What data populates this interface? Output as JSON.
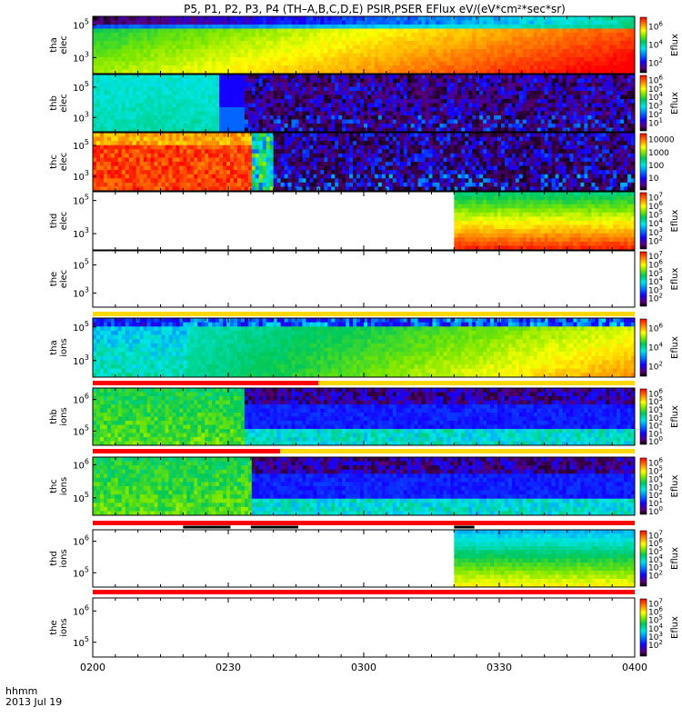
{
  "chart_data": {
    "type": "heatmap",
    "title": "P5, P1, P2, P3, P4 (TH–A,B,C,D,E) PSIR,PSER EFlux eV/(eV*cm²*sec*sr)",
    "x_axis": {
      "ticks": [
        "0200",
        "0230",
        "0300",
        "0330",
        "0400"
      ],
      "range_minutes": [
        0,
        120
      ]
    },
    "footer": {
      "label": "hhmm",
      "date": "2013 Jul 19"
    },
    "panels": [
      {
        "id": "tha_elec",
        "probe": "tha",
        "species": "elec",
        "y_ticks": [
          {
            "base": "10",
            "exp": "5",
            "pos": 0.15
          },
          {
            "base": "10",
            "exp": "3",
            "pos": 0.72
          }
        ],
        "colorbar_label": "Eflux",
        "colorbar_ticks": [
          {
            "base": "10",
            "exp": "6",
            "pos": 0.18
          },
          {
            "base": "10",
            "exp": "4",
            "pos": 0.5
          },
          {
            "base": "10",
            "exp": "2",
            "pos": 0.82
          }
        ],
        "data_span": [
          0,
          120
        ],
        "pattern": "smooth_gradient"
      },
      {
        "id": "thb_elec",
        "probe": "thb",
        "species": "elec",
        "y_ticks": [
          {
            "base": "10",
            "exp": "5",
            "pos": 0.22
          },
          {
            "base": "10",
            "exp": "3",
            "pos": 0.75
          }
        ],
        "colorbar_label": "Eflux",
        "colorbar_ticks": [
          {
            "base": "10",
            "exp": "6",
            "pos": 0.1
          },
          {
            "base": "10",
            "exp": "5",
            "pos": 0.25
          },
          {
            "base": "10",
            "exp": "4",
            "pos": 0.4
          },
          {
            "base": "10",
            "exp": "3",
            "pos": 0.55
          },
          {
            "base": "10",
            "exp": "2",
            "pos": 0.7
          },
          {
            "base": "10",
            "exp": "1",
            "pos": 0.85
          }
        ],
        "data_span": [
          0,
          120
        ],
        "pattern": "cyan_then_noise",
        "transition_minute": 34
      },
      {
        "id": "thc_elec",
        "probe": "thc",
        "species": "elec",
        "y_ticks": [
          {
            "base": "10",
            "exp": "5",
            "pos": 0.22
          },
          {
            "base": "10",
            "exp": "3",
            "pos": 0.75
          }
        ],
        "colorbar_label": "",
        "colorbar_ticks": [
          {
            "base": "10000",
            "exp": "",
            "pos": 0.12
          },
          {
            "base": "1000",
            "exp": "",
            "pos": 0.34
          },
          {
            "base": "100",
            "exp": "",
            "pos": 0.56
          },
          {
            "base": "10",
            "exp": "",
            "pos": 0.78
          }
        ],
        "data_span": [
          0,
          120
        ],
        "pattern": "red_then_noise",
        "transition_minute": 35
      },
      {
        "id": "thd_elec",
        "probe": "thd",
        "species": "elec",
        "y_ticks": [
          {
            "base": "10",
            "exp": "5",
            "pos": 0.15
          },
          {
            "base": "10",
            "exp": "3",
            "pos": 0.72
          }
        ],
        "colorbar_label": "Eflux",
        "colorbar_ticks": [
          {
            "base": "10",
            "exp": "7",
            "pos": 0.1
          },
          {
            "base": "10",
            "exp": "6",
            "pos": 0.25
          },
          {
            "base": "10",
            "exp": "5",
            "pos": 0.4
          },
          {
            "base": "10",
            "exp": "4",
            "pos": 0.55
          },
          {
            "base": "10",
            "exp": "3",
            "pos": 0.7
          },
          {
            "base": "10",
            "exp": "2",
            "pos": 0.85
          }
        ],
        "data_span": [
          80,
          120
        ],
        "pattern": "late_gradient"
      },
      {
        "id": "the_elec",
        "probe": "the",
        "species": "elec",
        "y_ticks": [
          {
            "base": "10",
            "exp": "5",
            "pos": 0.25
          },
          {
            "base": "10",
            "exp": "3",
            "pos": 0.75
          }
        ],
        "colorbar_label": "Eflux",
        "colorbar_ticks": [
          {
            "base": "10",
            "exp": "7",
            "pos": 0.1
          },
          {
            "base": "10",
            "exp": "6",
            "pos": 0.25
          },
          {
            "base": "10",
            "exp": "5",
            "pos": 0.4
          },
          {
            "base": "10",
            "exp": "4",
            "pos": 0.55
          },
          {
            "base": "10",
            "exp": "3",
            "pos": 0.7
          },
          {
            "base": "10",
            "exp": "2",
            "pos": 0.85
          }
        ],
        "data_span": [],
        "pattern": "empty"
      },
      {
        "id": "tha_ions",
        "probe": "tha",
        "species": "ions",
        "y_ticks": [
          {
            "base": "10",
            "exp": "5",
            "pos": 0.15
          },
          {
            "base": "10",
            "exp": "3",
            "pos": 0.72
          }
        ],
        "colorbar_label": "Eflux",
        "colorbar_ticks": [
          {
            "base": "10",
            "exp": "6",
            "pos": 0.18
          },
          {
            "base": "10",
            "exp": "4",
            "pos": 0.5
          },
          {
            "base": "10",
            "exp": "2",
            "pos": 0.82
          }
        ],
        "data_span": [
          0,
          120
        ],
        "pattern": "ion_gradient",
        "transition_minute": 21
      },
      {
        "id": "thb_ions",
        "probe": "thb",
        "species": "ions",
        "y_ticks": [
          {
            "base": "10",
            "exp": "6",
            "pos": 0.2
          },
          {
            "base": "10",
            "exp": "5",
            "pos": 0.75
          }
        ],
        "colorbar_label": "Eflux",
        "colorbar_ticks": [
          {
            "base": "10",
            "exp": "6",
            "pos": 0.1
          },
          {
            "base": "10",
            "exp": "5",
            "pos": 0.24
          },
          {
            "base": "10",
            "exp": "4",
            "pos": 0.38
          },
          {
            "base": "10",
            "exp": "3",
            "pos": 0.52
          },
          {
            "base": "10",
            "exp": "2",
            "pos": 0.66
          },
          {
            "base": "10",
            "exp": "1",
            "pos": 0.8
          },
          {
            "base": "10",
            "exp": "0",
            "pos": 0.94
          }
        ],
        "data_span": [
          0,
          120
        ],
        "pattern": "green_then_band",
        "transition_minute": 34
      },
      {
        "id": "thc_ions",
        "probe": "thc",
        "species": "ions",
        "y_ticks": [
          {
            "base": "10",
            "exp": "6",
            "pos": 0.13
          },
          {
            "base": "10",
            "exp": "5",
            "pos": 0.7
          }
        ],
        "colorbar_label": "Eflux",
        "colorbar_ticks": [
          {
            "base": "10",
            "exp": "6",
            "pos": 0.1
          },
          {
            "base": "10",
            "exp": "5",
            "pos": 0.24
          },
          {
            "base": "10",
            "exp": "4",
            "pos": 0.38
          },
          {
            "base": "10",
            "exp": "3",
            "pos": 0.52
          },
          {
            "base": "10",
            "exp": "2",
            "pos": 0.66
          },
          {
            "base": "10",
            "exp": "1",
            "pos": 0.8
          },
          {
            "base": "10",
            "exp": "0",
            "pos": 0.94
          }
        ],
        "data_span": [
          0,
          120
        ],
        "pattern": "green_then_band",
        "transition_minute": 35
      },
      {
        "id": "thd_ions",
        "probe": "thd",
        "species": "ions",
        "y_ticks": [
          {
            "base": "10",
            "exp": "6",
            "pos": 0.2
          },
          {
            "base": "10",
            "exp": "5",
            "pos": 0.75
          }
        ],
        "colorbar_label": "Eflux",
        "colorbar_ticks": [
          {
            "base": "10",
            "exp": "7",
            "pos": 0.1
          },
          {
            "base": "10",
            "exp": "6",
            "pos": 0.24
          },
          {
            "base": "10",
            "exp": "5",
            "pos": 0.38
          },
          {
            "base": "10",
            "exp": "4",
            "pos": 0.52
          },
          {
            "base": "10",
            "exp": "3",
            "pos": 0.66
          },
          {
            "base": "10",
            "exp": "2",
            "pos": 0.8
          }
        ],
        "data_span": [
          80,
          120
        ],
        "pattern": "late_ion"
      },
      {
        "id": "the_ions",
        "probe": "the",
        "species": "ions",
        "y_ticks": [
          {
            "base": "10",
            "exp": "6",
            "pos": 0.22
          },
          {
            "base": "10",
            "exp": "5",
            "pos": 0.75
          }
        ],
        "colorbar_label": "Eflux",
        "colorbar_ticks": [
          {
            "base": "10",
            "exp": "7",
            "pos": 0.1
          },
          {
            "base": "10",
            "exp": "6",
            "pos": 0.24
          },
          {
            "base": "10",
            "exp": "5",
            "pos": 0.38
          },
          {
            "base": "10",
            "exp": "4",
            "pos": 0.52
          },
          {
            "base": "10",
            "exp": "3",
            "pos": 0.66
          },
          {
            "base": "10",
            "exp": "2",
            "pos": 0.8
          }
        ],
        "data_span": [],
        "pattern": "empty"
      }
    ],
    "mode_bars": [
      {
        "after_panel": "the_elec",
        "segments": [
          {
            "from": 0,
            "to": 120,
            "color": "#ffd800"
          }
        ]
      },
      {
        "after_panel": "tha_ions",
        "segments": [
          {
            "from": 0,
            "to": 50,
            "color": "#ff0000"
          },
          {
            "from": 50,
            "to": 120,
            "color": "#ffd800"
          }
        ]
      },
      {
        "after_panel": "thb_ions",
        "segments": [
          {
            "from": 0,
            "to": 41.5,
            "color": "#ff0000"
          },
          {
            "from": 41.5,
            "to": 120,
            "color": "#ffd800"
          }
        ]
      },
      {
        "after_panel": "thc_ions",
        "segments": [
          {
            "from": 0,
            "to": 120,
            "color": "#ff0000"
          }
        ]
      },
      {
        "after_panel": "thd_ions",
        "segments": [
          {
            "from": 0,
            "to": 120,
            "color": "#ff0000"
          }
        ]
      }
    ],
    "black_bars": [
      {
        "after_panel": "thc_ions",
        "segments": [
          [
            20,
            30.5
          ],
          [
            35,
            45.5
          ],
          [
            80,
            84.5
          ]
        ]
      }
    ]
  }
}
